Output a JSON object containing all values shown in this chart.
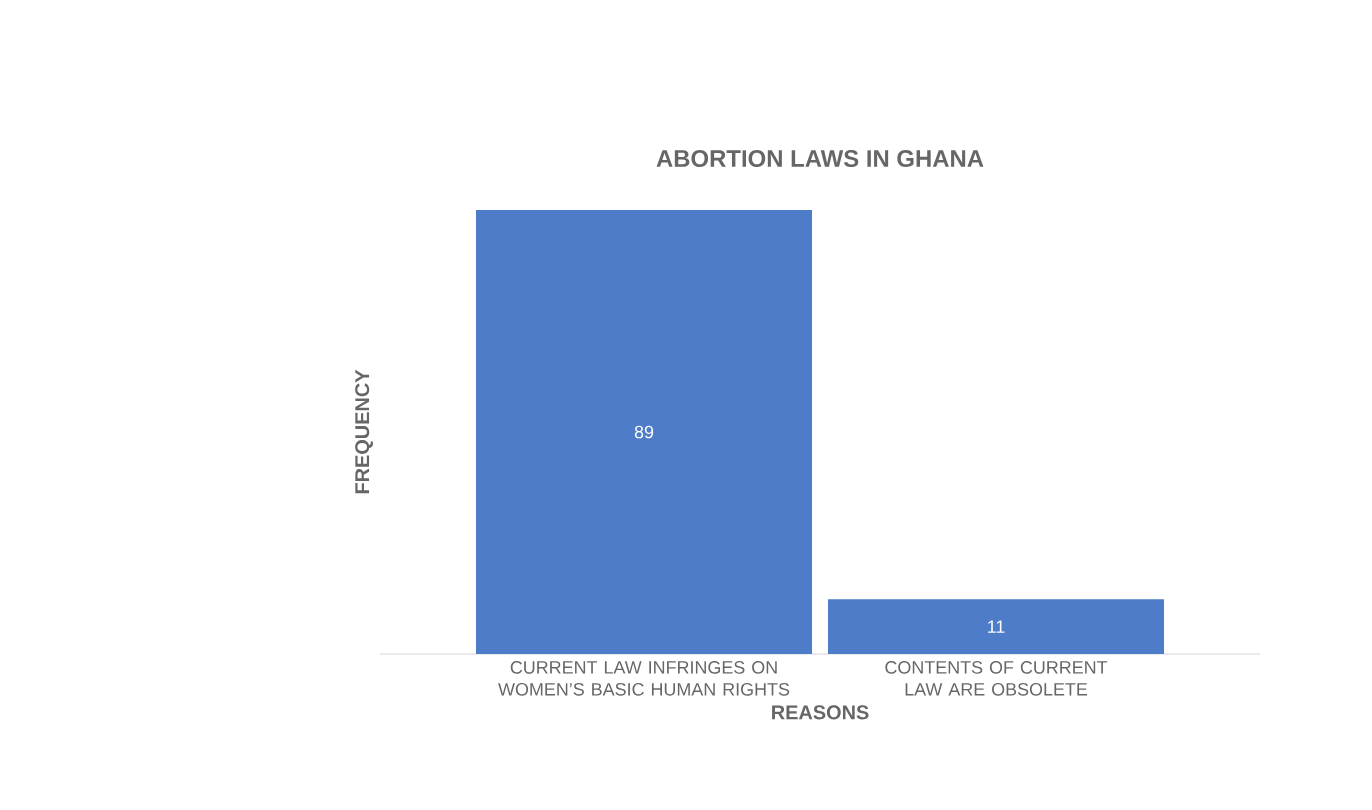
{
  "chart_data": {
    "type": "bar",
    "title": "ABORTION LAWS IN GHANA",
    "xlabel": "REASONS",
    "ylabel": "FREQUENCY",
    "categories": [
      "CURRENT LAW INFRINGES ON WOMEN’S BASIC HUMAN RIGHTS",
      "CONTENTS OF CURRENT LAW ARE OBSOLETE"
    ],
    "values": [
      89,
      11
    ],
    "color": "#4e7cc8",
    "data_labels": true
  }
}
